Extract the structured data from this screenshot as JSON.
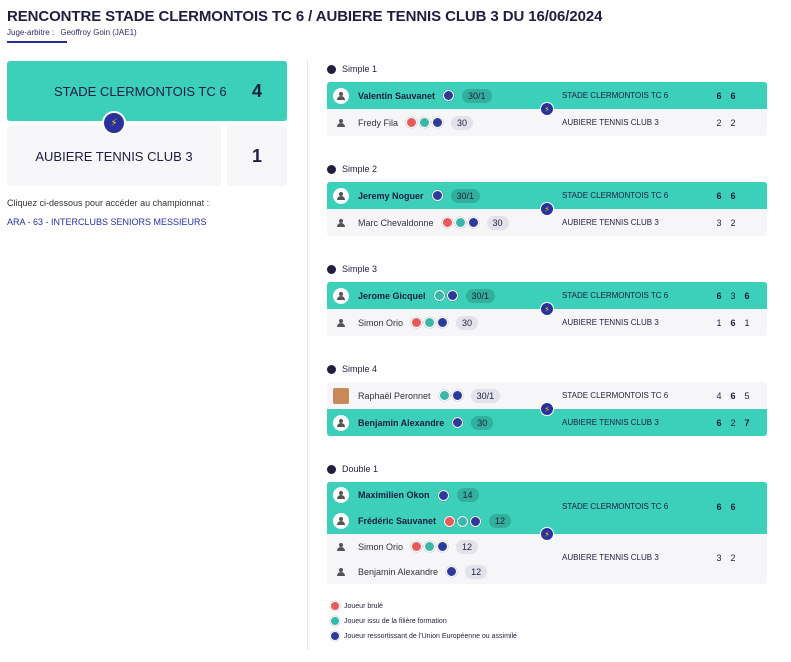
{
  "header": {
    "title": "RENCONTRE STADE CLERMONTOIS TC 6 / AUBIERE TENNIS CLUB 3 DU 16/06/2024",
    "referee_label": "Juge-arbitre :",
    "referee_name": "Geoffroy Goin (JAE1)"
  },
  "score": {
    "home_team": "STADE CLERMONTOIS TC 6",
    "home_score": "4",
    "away_team": "AUBIERE TENNIS CLUB 3",
    "away_score": "1"
  },
  "championship": {
    "prompt": "Cliquez ci-dessous pour accéder au championnat :",
    "link": "ARA - 63 - INTERCLUBS SENIORS MESSIEURS"
  },
  "matches": [
    {
      "title": "Simple 1",
      "top": {
        "name": "Valentin Sauvanet",
        "rank": "30/1",
        "team": "STADE CLERMONTOIS TC 6",
        "sets": [
          "6",
          "6"
        ]
      },
      "bottom": {
        "name": "Fredy Fila",
        "rank": "30",
        "team": "AUBIERE TENNIS CLUB 3",
        "sets": [
          "2",
          "2"
        ]
      }
    },
    {
      "title": "Simple 2",
      "top": {
        "name": "Jeremy Noguer",
        "rank": "30/1",
        "team": "STADE CLERMONTOIS TC 6",
        "sets": [
          "6",
          "6"
        ]
      },
      "bottom": {
        "name": "Marc Chevaldonne",
        "rank": "30",
        "team": "AUBIERE TENNIS CLUB 3",
        "sets": [
          "3",
          "2"
        ]
      }
    },
    {
      "title": "Simple 3",
      "top": {
        "name": "Jerome Gicquel",
        "rank": "30/1",
        "team": "STADE CLERMONTOIS TC 6",
        "sets": [
          "6",
          "3",
          "6"
        ]
      },
      "bottom": {
        "name": "Simon Orio",
        "rank": "30",
        "team": "AUBIERE TENNIS CLUB 3",
        "sets": [
          "1",
          "6",
          "1"
        ]
      }
    },
    {
      "title": "Simple 4",
      "top": {
        "name": "Raphaël Peronnet",
        "rank": "30/1",
        "team": "STADE CLERMONTOIS TC 6",
        "sets": [
          "4",
          "6",
          "5"
        ]
      },
      "bottom": {
        "name": "Benjamin Alexandre",
        "rank": "30",
        "team": "AUBIERE TENNIS CLUB 3",
        "sets": [
          "6",
          "2",
          "7"
        ]
      }
    },
    {
      "title": "Double 1",
      "p1": {
        "name": "Maximilien Okon",
        "rank": "14"
      },
      "p2": {
        "name": "Frédéric Sauvanet",
        "rank": "12"
      },
      "p3": {
        "name": "Simon Orio",
        "rank": "12"
      },
      "p4": {
        "name": "Benjamin Alexandre",
        "rank": "12"
      },
      "top_team": "STADE CLERMONTOIS TC 6",
      "top_sets": [
        "6",
        "6"
      ],
      "bottom_team": "AUBIERE TENNIS CLUB 3",
      "bottom_sets": [
        "3",
        "2"
      ]
    }
  ],
  "legend": {
    "burned": "Joueur brulé",
    "formation": "Joueur issu de la filière formation",
    "eu": "Joueur ressortissant de l'Union Européenne ou assimilé"
  },
  "colors": {
    "win": "#3ccfba",
    "lose": "#f6f6f8",
    "navy": "#28319c",
    "red": "#e85a5a",
    "teal": "#39b7a8",
    "blue": "#2d3a9a"
  },
  "icons": {
    "home": "house-icon",
    "vs": "lightning-icon",
    "match": "tennis-ball-icon",
    "player": "person-icon"
  }
}
